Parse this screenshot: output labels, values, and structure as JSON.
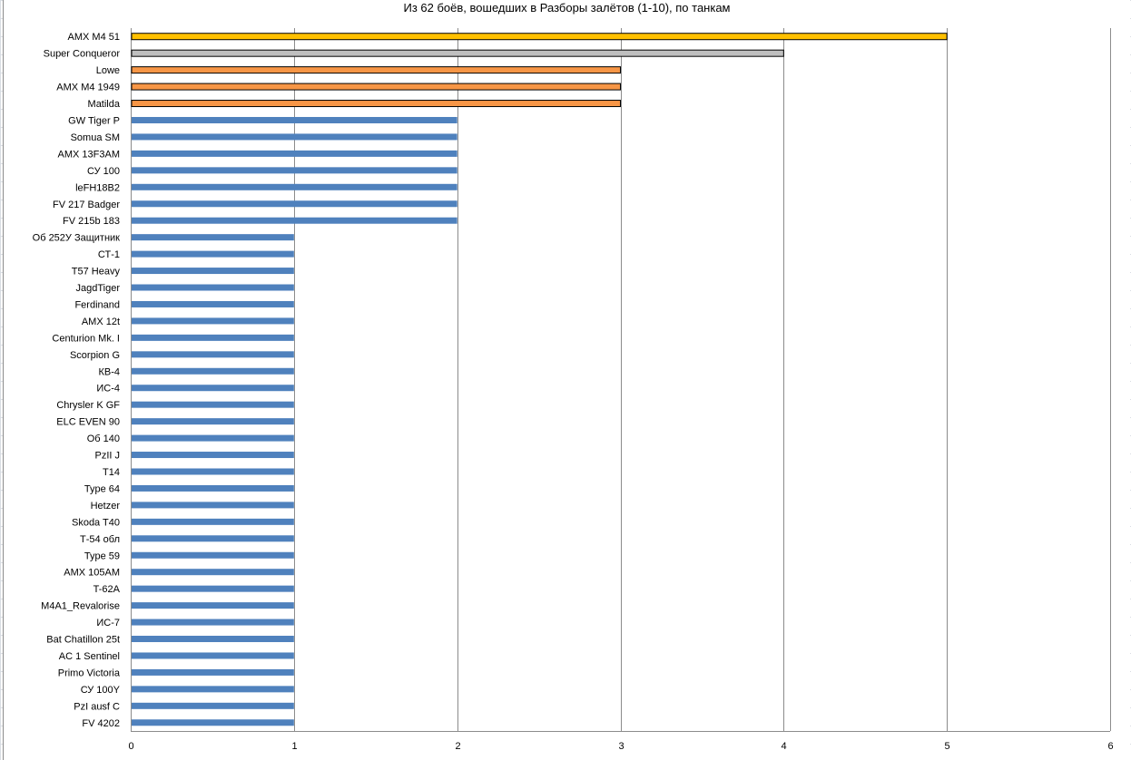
{
  "chart_data": {
    "type": "bar",
    "orientation": "horizontal",
    "title": "Из 62 боёв, вошедших в Разборы залётов (1-10), по танкам",
    "xlim": [
      0,
      6
    ],
    "x_ticks": [
      "0",
      "1",
      "2",
      "3",
      "4",
      "5",
      "6"
    ],
    "grid": "vertical",
    "legend": "none",
    "categories": [
      "AMX M4 51",
      "Super Conqueror",
      "Lowe",
      "AMX M4 1949",
      "Matilda",
      "GW Tiger P",
      "Somua SM",
      "AMX 13F3AM",
      "СУ 100",
      "leFH18B2",
      "FV 217 Badger",
      "FV 215b 183",
      "Об 252У Защитник",
      "СТ-1",
      "T57 Heavy",
      "JagdTiger",
      "Ferdinand",
      "AMX 12t",
      "Centurion Mk. I",
      "Scorpion G",
      "КВ-4",
      "ИС-4",
      "Chrysler K GF",
      "ELC EVEN 90",
      "Об 140",
      "PzII J",
      "T14",
      "Type 64",
      "Hetzer",
      "Skoda T40",
      "Т-54 обл",
      "Type 59",
      "AMX 105AM",
      "T-62A",
      "M4A1_Revalorise",
      "ИС-7",
      "Bat Chatillon 25t",
      "AC 1 Sentinel",
      "Primo Victoria",
      "СУ 100Y",
      "PzI ausf C",
      "FV 4202"
    ],
    "values": [
      5,
      4,
      3,
      3,
      3,
      2,
      2,
      2,
      2,
      2,
      2,
      2,
      1,
      1,
      1,
      1,
      1,
      1,
      1,
      1,
      1,
      1,
      1,
      1,
      1,
      1,
      1,
      1,
      1,
      1,
      1,
      1,
      1,
      1,
      1,
      1,
      1,
      1,
      1,
      1,
      1,
      1
    ],
    "colors": [
      "#ffc000",
      "#bfbfbf",
      "#f79646",
      "#f79646",
      "#f79646",
      "#4f81bd",
      "#4f81bd",
      "#4f81bd",
      "#4f81bd",
      "#4f81bd",
      "#4f81bd",
      "#4f81bd",
      "#4f81bd",
      "#4f81bd",
      "#4f81bd",
      "#4f81bd",
      "#4f81bd",
      "#4f81bd",
      "#4f81bd",
      "#4f81bd",
      "#4f81bd",
      "#4f81bd",
      "#4f81bd",
      "#4f81bd",
      "#4f81bd",
      "#4f81bd",
      "#4f81bd",
      "#4f81bd",
      "#4f81bd",
      "#4f81bd",
      "#4f81bd",
      "#4f81bd",
      "#4f81bd",
      "#4f81bd",
      "#4f81bd",
      "#4f81bd",
      "#4f81bd",
      "#4f81bd",
      "#4f81bd",
      "#4f81bd",
      "#4f81bd",
      "#4f81bd"
    ],
    "outlined": [
      true,
      true,
      true,
      true,
      true
    ]
  }
}
